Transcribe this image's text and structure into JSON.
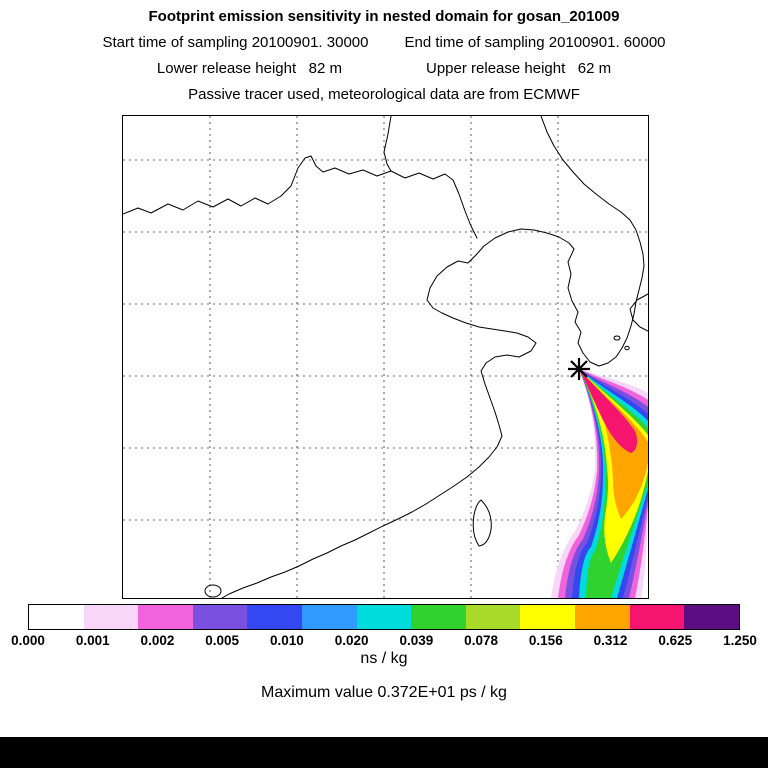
{
  "header": {
    "title": "Footprint emission sensitivity in nested domain for gosan_201009",
    "sampling_start": "Start time of sampling 20100901. 30000",
    "sampling_end": "End time of sampling 20100901. 60000",
    "lower_release": "Lower release height   82 m",
    "upper_release": "Upper release height   62 m",
    "tracer_line": "Passive tracer used, meteorological data are from ECMWF"
  },
  "colorbar": {
    "tick_labels": [
      "0.000",
      "0.001",
      "0.002",
      "0.005",
      "0.010",
      "0.020",
      "0.039",
      "0.078",
      "0.156",
      "0.312",
      "0.625",
      "1.250"
    ],
    "segment_colors": [
      "#ffffff",
      "#f7d6f7",
      "#f063dd",
      "#7a50e0",
      "#3348f0",
      "#2f9aff",
      "#00dcdc",
      "#2fd22f",
      "#a8dc28",
      "#ffff00",
      "#ffa500",
      "#f5156e",
      "#5c0d82"
    ],
    "unit_label": "ns / kg"
  },
  "max_line": "Maximum value  0.372E+01 ps / kg",
  "plume": {
    "band_colors": [
      "#f7d6f7",
      "#f063dd",
      "#7a50e0",
      "#3348f0",
      "#00dcdc",
      "#2fd22f",
      "#ffff00",
      "#ffa500",
      "#f5156e"
    ],
    "marker": "station-star"
  },
  "chart_data": {
    "type": "heatmap",
    "title": "Footprint emission sensitivity in nested domain for gosan_201009",
    "subtitle_lines": [
      "Start time of sampling 20100901. 30000   End time of sampling 20100901. 60000",
      "Lower release height   82 m   Upper release height   62 m",
      "Passive tracer used, meteorological data are from ECMWF"
    ],
    "colorbar": {
      "tick_values": [
        0.0,
        0.001,
        0.002,
        0.005,
        0.01,
        0.02,
        0.039,
        0.078,
        0.156,
        0.312,
        0.625,
        1.25
      ],
      "unit": "ns / kg",
      "colors": [
        "#ffffff",
        "#f7d6f7",
        "#f063dd",
        "#7a50e0",
        "#3348f0",
        "#2f9aff",
        "#00dcdc",
        "#2fd22f",
        "#a8dc28",
        "#ffff00",
        "#ffa500",
        "#f5156e",
        "#5c0d82"
      ],
      "legend_position": "bottom"
    },
    "max_value_text": "Maximum value  0.372E+01 ps / kg",
    "map": {
      "region": "East Asia nested domain (China, Korea, Taiwan, Kyushu)",
      "grid": "dashed lat/lon gridlines, 5 vertical x 6 horizontal",
      "source_marker": "black star at Gosan station (Jeju)",
      "plume_shape": "rainbow sensitivity plume extending south-southeast from the station to the bottom-right of the domain"
    }
  }
}
